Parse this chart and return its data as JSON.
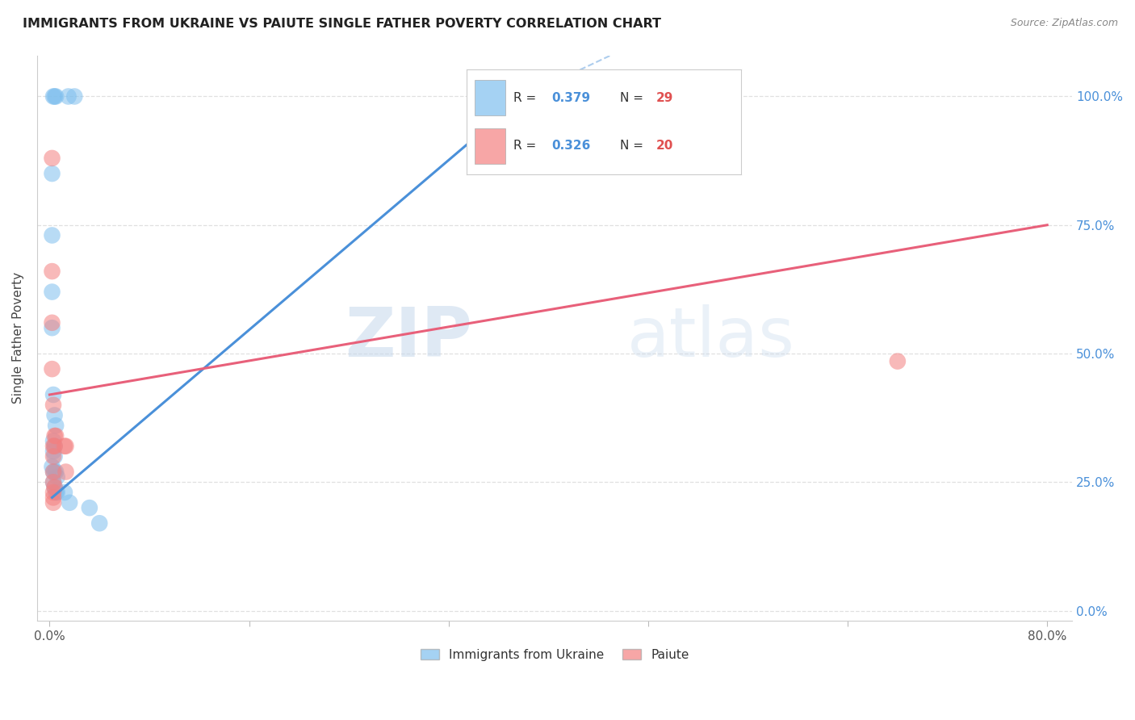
{
  "title": "IMMIGRANTS FROM UKRAINE VS PAIUTE SINGLE FATHER POVERTY CORRELATION CHART",
  "source": "Source: ZipAtlas.com",
  "ylabel": "Single Father Poverty",
  "watermark_zip": "ZIP",
  "watermark_atlas": "atlas",
  "background_color": "#ffffff",
  "blue_color": "#7fbfee",
  "pink_color": "#f48080",
  "blue_line_color": "#4a90d9",
  "pink_line_color": "#e8607a",
  "blue_scatter": [
    [
      0.3,
      100.0
    ],
    [
      0.4,
      100.0
    ],
    [
      0.5,
      100.0
    ],
    [
      1.5,
      100.0
    ],
    [
      2.0,
      100.0
    ],
    [
      0.2,
      85.0
    ],
    [
      0.2,
      73.0
    ],
    [
      0.2,
      62.0
    ],
    [
      0.2,
      55.0
    ],
    [
      0.3,
      42.0
    ],
    [
      0.4,
      38.0
    ],
    [
      0.5,
      36.0
    ],
    [
      0.3,
      33.0
    ],
    [
      0.4,
      32.0
    ],
    [
      0.3,
      31.0
    ],
    [
      0.4,
      30.0
    ],
    [
      0.2,
      28.0
    ],
    [
      0.3,
      27.0
    ],
    [
      0.4,
      27.0
    ],
    [
      0.5,
      27.0
    ],
    [
      0.6,
      26.0
    ],
    [
      0.3,
      25.0
    ],
    [
      0.4,
      24.0
    ],
    [
      0.5,
      23.0
    ],
    [
      0.6,
      23.0
    ],
    [
      1.2,
      23.0
    ],
    [
      1.6,
      21.0
    ],
    [
      3.2,
      20.0
    ],
    [
      4.0,
      17.0
    ]
  ],
  "pink_scatter": [
    [
      0.2,
      88.0
    ],
    [
      0.2,
      66.0
    ],
    [
      0.2,
      56.0
    ],
    [
      0.2,
      47.0
    ],
    [
      0.3,
      40.0
    ],
    [
      0.4,
      34.0
    ],
    [
      0.5,
      34.0
    ],
    [
      0.3,
      32.0
    ],
    [
      0.4,
      32.0
    ],
    [
      1.2,
      32.0
    ],
    [
      1.3,
      32.0
    ],
    [
      0.3,
      30.0
    ],
    [
      1.3,
      27.0
    ],
    [
      0.3,
      27.0
    ],
    [
      0.3,
      25.0
    ],
    [
      0.4,
      24.0
    ],
    [
      0.3,
      23.0
    ],
    [
      0.3,
      22.0
    ],
    [
      0.3,
      21.0
    ],
    [
      68.0,
      48.5
    ]
  ],
  "blue_solid_line": [
    [
      0.2,
      22.0
    ],
    [
      38.0,
      100.0
    ]
  ],
  "blue_dashed_line": [
    [
      38.0,
      100.0
    ],
    [
      80.0,
      148.0
    ]
  ],
  "pink_line": [
    [
      0.0,
      42.0
    ],
    [
      80.0,
      75.0
    ]
  ],
  "xlim": [
    -1.0,
    82.0
  ],
  "ylim": [
    -2.0,
    108.0
  ],
  "xtick_positions": [
    0,
    16,
    32,
    48,
    64,
    80
  ],
  "xtick_labels": [
    "0.0%",
    "",
    "",
    "",
    "",
    "80.0%"
  ],
  "ytick_positions": [
    0,
    25,
    50,
    75,
    100
  ],
  "ytick_labels_right": [
    "0.0%",
    "25.0%",
    "50.0%",
    "75.0%",
    "100.0%"
  ],
  "right_label_color": "#4a90d9",
  "grid_color": "#dddddd",
  "legend_blue_label": "Immigrants from Ukraine",
  "legend_pink_label": "Paiute",
  "legend_r_blue": "0.379",
  "legend_n_blue": "29",
  "legend_r_pink": "0.326",
  "legend_n_pink": "20",
  "legend_r_color": "#4a90d9",
  "legend_n_color": "#e05050"
}
